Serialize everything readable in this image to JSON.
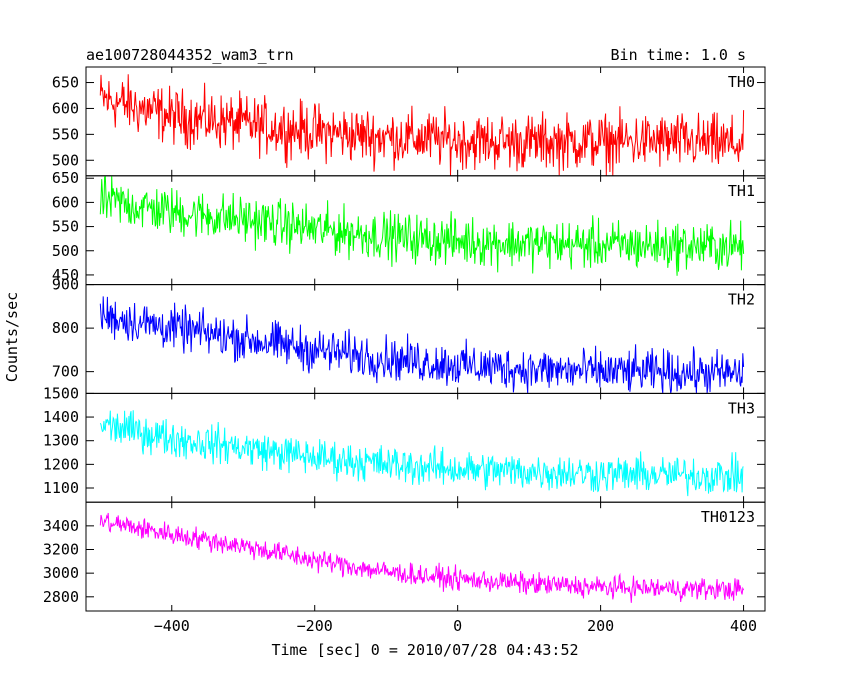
{
  "chart_data": {
    "type": "line",
    "title": "ae100728044352_wam3_trn",
    "subtitle": "Bin time: 1.0 s",
    "xlabel": "Time [sec] 0 = 2010/07/28 04:43:52",
    "ylabel": "Counts/sec",
    "xlim": [
      -520,
      430
    ],
    "x_ticks": [
      -400,
      -200,
      0,
      200,
      400
    ],
    "grid": false,
    "panels": [
      {
        "name": "TH0",
        "color": "#ff0000",
        "ylim": [
          470,
          680
        ],
        "y_ticks": [
          500,
          550,
          600,
          650
        ],
        "series": {
          "x": [
            -500,
            -400,
            -300,
            -200,
            -100,
            0,
            100,
            200,
            300,
            400
          ],
          "values": [
            620,
            585,
            570,
            555,
            545,
            538,
            535,
            535,
            537,
            530
          ]
        },
        "noise": 38
      },
      {
        "name": "TH1",
        "color": "#00ff00",
        "ylim": [
          430,
          655
        ],
        "y_ticks": [
          450,
          500,
          550,
          600,
          650
        ],
        "series": {
          "x": [
            -500,
            -400,
            -300,
            -200,
            -100,
            0,
            100,
            200,
            300,
            400
          ],
          "values": [
            605,
            580,
            565,
            545,
            530,
            520,
            515,
            512,
            510,
            508
          ]
        },
        "noise": 35
      },
      {
        "name": "TH2",
        "color": "#0000ff",
        "ylim": [
          650,
          900
        ],
        "y_ticks": [
          700,
          800,
          900
        ],
        "series": {
          "x": [
            -500,
            -400,
            -300,
            -200,
            -100,
            0,
            100,
            200,
            300,
            400
          ],
          "values": [
            830,
            800,
            775,
            750,
            730,
            715,
            705,
            700,
            698,
            695
          ]
        },
        "noise": 35
      },
      {
        "name": "TH3",
        "color": "#00ffff",
        "ylim": [
          1040,
          1500
        ],
        "y_ticks": [
          1100,
          1200,
          1300,
          1400,
          1500
        ],
        "series": {
          "x": [
            -500,
            -400,
            -300,
            -200,
            -100,
            0,
            100,
            200,
            300,
            400
          ],
          "values": [
            1370,
            1310,
            1270,
            1230,
            1200,
            1180,
            1170,
            1160,
            1155,
            1150
          ]
        },
        "noise": 55
      },
      {
        "name": "TH0123",
        "color": "#ff00ff",
        "ylim": [
          2680,
          3600
        ],
        "y_ticks": [
          2800,
          3000,
          3200,
          3400
        ],
        "series": {
          "x": [
            -500,
            -400,
            -300,
            -200,
            -100,
            0,
            100,
            200,
            300,
            400
          ],
          "values": [
            3440,
            3330,
            3230,
            3110,
            3010,
            2950,
            2910,
            2880,
            2870,
            2860
          ]
        },
        "noise": 65
      }
    ]
  }
}
